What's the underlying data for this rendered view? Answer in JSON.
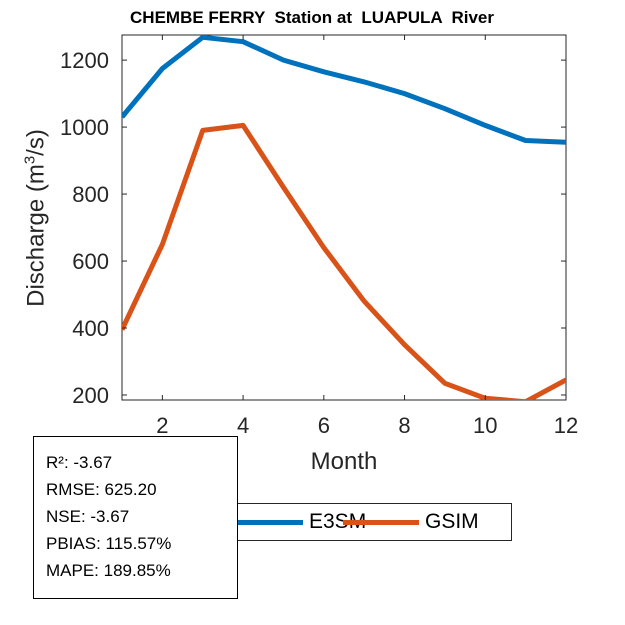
{
  "chart_data": {
    "type": "line",
    "title": "CHEMBE FERRY  Station at  LUAPULA  River",
    "xlabel": "Month",
    "ylabel_main": "Discharge (m",
    "ylabel_sup": "3",
    "ylabel_tail": "/s)",
    "x": [
      1,
      2,
      3,
      4,
      5,
      6,
      7,
      8,
      9,
      10,
      11,
      12
    ],
    "xlim": [
      1,
      12
    ],
    "ylim": [
      185,
      1275
    ],
    "xticks": [
      2,
      4,
      6,
      8,
      10,
      12
    ],
    "yticks": [
      200,
      400,
      600,
      800,
      1000,
      1200
    ],
    "grid": false,
    "legend_position": "bottom-center-outside",
    "series": [
      {
        "name": "E3SM",
        "color": "#0072BD",
        "values": [
          1030,
          1175,
          1268,
          1255,
          1200,
          1165,
          1135,
          1100,
          1055,
          1005,
          960,
          955
        ]
      },
      {
        "name": "GSIM",
        "color": "#D95319",
        "values": [
          395,
          650,
          990,
          1005,
          820,
          640,
          480,
          350,
          235,
          190,
          180,
          245
        ]
      }
    ]
  },
  "stats": [
    "R²: -3.67",
    "RMSE: 625.20",
    "NSE: -3.67",
    "PBIAS: 115.57%",
    "MAPE: 189.85%"
  ]
}
